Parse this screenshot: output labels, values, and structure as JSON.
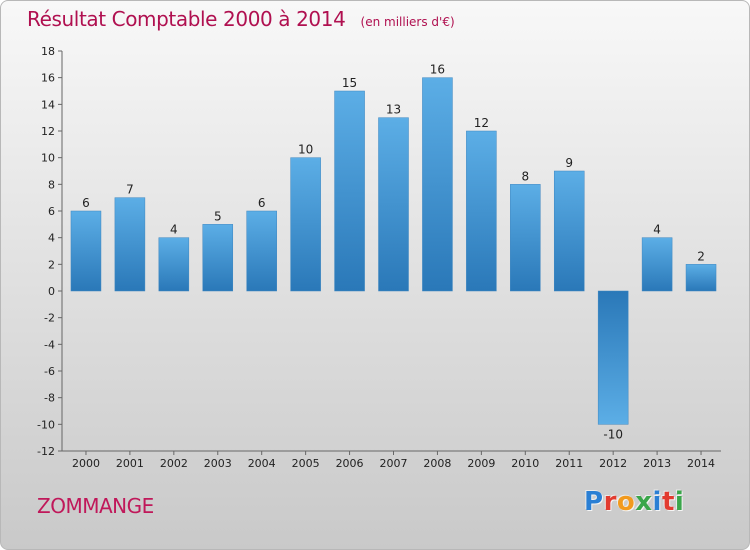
{
  "title": "Résultat Comptable 2000 à 2014",
  "unit_note": "(en milliers d'€)",
  "town": "ZOMMANGE",
  "logo": {
    "text": "Proxiti",
    "letter_colors": [
      "#2a7fd4",
      "#e23b2f",
      "#f29a1e",
      "#3aa64a",
      "#2a7fd4",
      "#e23b2f",
      "#3aa64a"
    ]
  },
  "colors": {
    "bar_top": "#5caee6",
    "bar_bottom": "#2a78b8",
    "text": "#222222",
    "title": "#b01050"
  },
  "chart_data": {
    "type": "bar",
    "title": "Résultat Comptable 2000 à 2014",
    "xlabel": "",
    "ylabel": "",
    "categories": [
      "2000",
      "2001",
      "2002",
      "2003",
      "2004",
      "2005",
      "2006",
      "2007",
      "2008",
      "2009",
      "2010",
      "2011",
      "2012",
      "2013",
      "2014"
    ],
    "values": [
      6,
      7,
      4,
      5,
      6,
      10,
      15,
      13,
      16,
      12,
      8,
      9,
      -10,
      4,
      2
    ],
    "data_labels": [
      "6",
      "7",
      "4",
      "5",
      "6",
      "10",
      "15",
      "13",
      "16",
      "12",
      "8",
      "9",
      "-10",
      "4",
      "2"
    ],
    "ylim": [
      -12,
      18
    ],
    "yticks": [
      -12,
      -10,
      -8,
      -6,
      -4,
      -2,
      0,
      2,
      4,
      6,
      8,
      10,
      12,
      14,
      16,
      18
    ],
    "grid": false,
    "legend": "none"
  }
}
